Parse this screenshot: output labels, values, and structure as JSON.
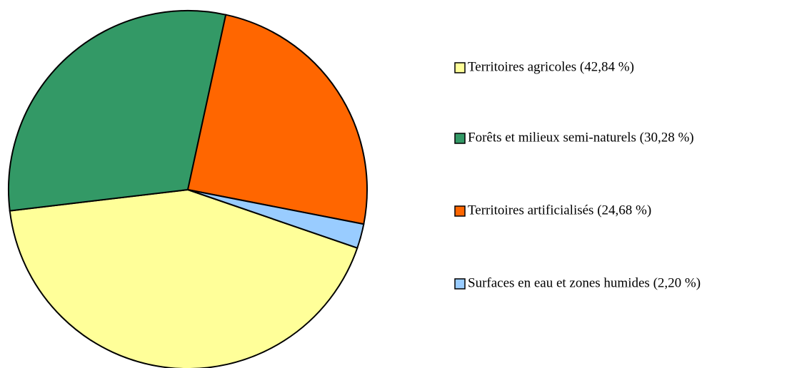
{
  "chart_data": {
    "type": "pie",
    "categories": [
      "Territoires agricoles (42,84 %)",
      "Forêts et milieux semi-naturels (30,28 %)",
      "Territoires artificialisés (24,68 %)",
      "Surfaces en eau et zones humides (2,20 %)"
    ],
    "values": [
      42.84,
      30.28,
      24.68,
      2.2
    ],
    "colors": [
      "#ffff99",
      "#339966",
      "#ff6600",
      "#99ccff"
    ],
    "legend": "right"
  }
}
